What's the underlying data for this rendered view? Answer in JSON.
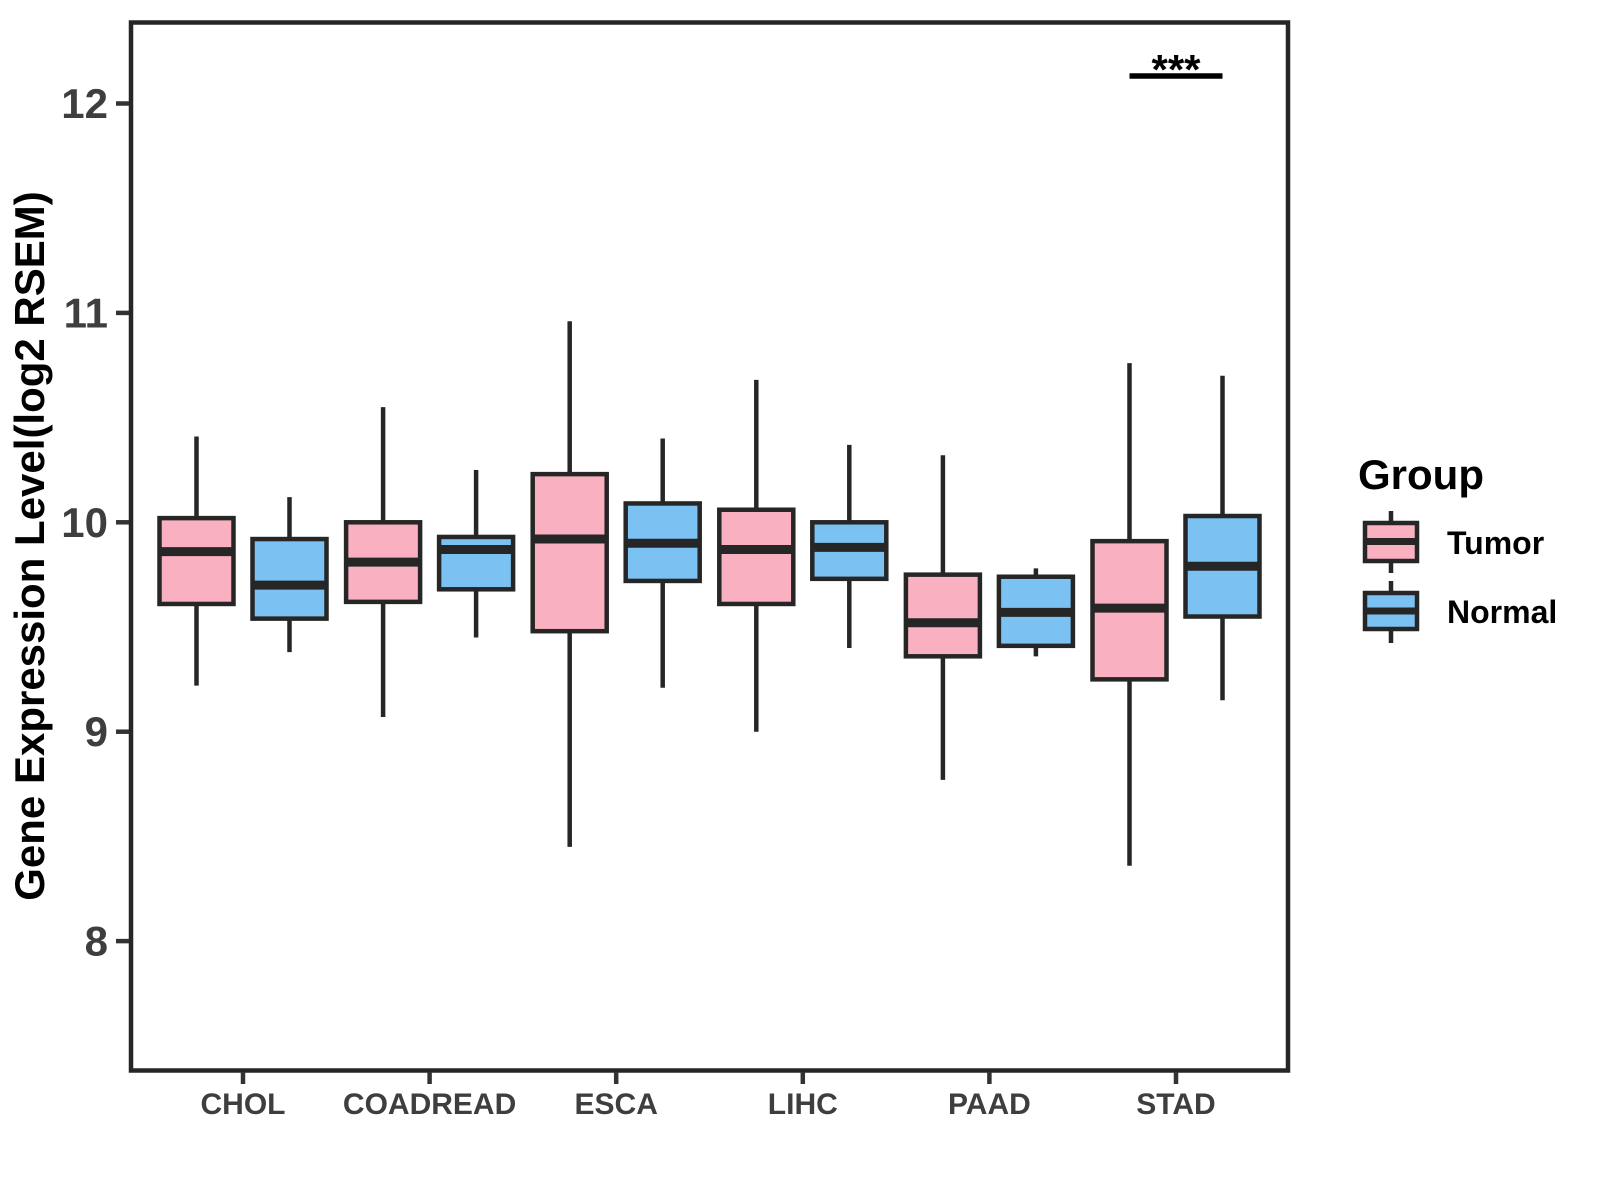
{
  "chart_data": {
    "type": "boxplot",
    "title": "",
    "xlabel": "",
    "ylabel": "Gene Expression Level(log2 RSEM)",
    "categories": [
      "CHOL",
      "COADREAD",
      "ESCA",
      "LIHC",
      "PAAD",
      "STAD"
    ],
    "y_ticks": [
      12,
      11,
      10,
      9,
      8
    ],
    "ylim": [
      7.4,
      12.4
    ],
    "grid": false,
    "panel_background": "#FFFFFF",
    "box_stroke": "#262626",
    "tick_text_color": "#3E3E3E",
    "legend_position": "right",
    "series": [
      {
        "name": "Tumor",
        "color": "#F9B0C1",
        "boxes": [
          {
            "category": "CHOL",
            "min": 9.22,
            "q1": 9.61,
            "median": 9.86,
            "q3": 10.02,
            "max": 10.41
          },
          {
            "category": "COADREAD",
            "min": 9.07,
            "q1": 9.62,
            "median": 9.81,
            "q3": 10.0,
            "max": 10.55
          },
          {
            "category": "ESCA",
            "min": 8.45,
            "q1": 9.48,
            "median": 9.92,
            "q3": 10.23,
            "max": 10.96
          },
          {
            "category": "LIHC",
            "min": 9.0,
            "q1": 9.61,
            "median": 9.87,
            "q3": 10.06,
            "max": 10.68
          },
          {
            "category": "PAAD",
            "min": 8.77,
            "q1": 9.36,
            "median": 9.52,
            "q3": 9.75,
            "max": 10.32
          },
          {
            "category": "STAD",
            "min": 8.36,
            "q1": 9.25,
            "median": 9.59,
            "q3": 9.91,
            "max": 10.76
          }
        ]
      },
      {
        "name": "Normal",
        "color": "#7BC2F2",
        "boxes": [
          {
            "category": "CHOL",
            "min": 9.38,
            "q1": 9.54,
            "median": 9.7,
            "q3": 9.92,
            "max": 10.12
          },
          {
            "category": "COADREAD",
            "min": 9.45,
            "q1": 9.68,
            "median": 9.87,
            "q3": 9.93,
            "max": 10.25
          },
          {
            "category": "ESCA",
            "min": 9.21,
            "q1": 9.72,
            "median": 9.9,
            "q3": 10.09,
            "max": 10.4
          },
          {
            "category": "LIHC",
            "min": 9.4,
            "q1": 9.73,
            "median": 9.88,
            "q3": 10.0,
            "max": 10.37
          },
          {
            "category": "PAAD",
            "min": 9.36,
            "q1": 9.41,
            "median": 9.57,
            "q3": 9.74,
            "max": 9.78
          },
          {
            "category": "STAD",
            "min": 9.15,
            "q1": 9.55,
            "median": 9.79,
            "q3": 10.03,
            "max": 10.7
          }
        ]
      }
    ],
    "legend": {
      "title": "Group",
      "entries": [
        {
          "label": "Tumor",
          "color": "#F9B0C1"
        },
        {
          "label": "Normal",
          "color": "#7BC2F2"
        }
      ]
    },
    "significance": {
      "label": "***",
      "category": "STAD",
      "y_value": 12.15
    }
  }
}
